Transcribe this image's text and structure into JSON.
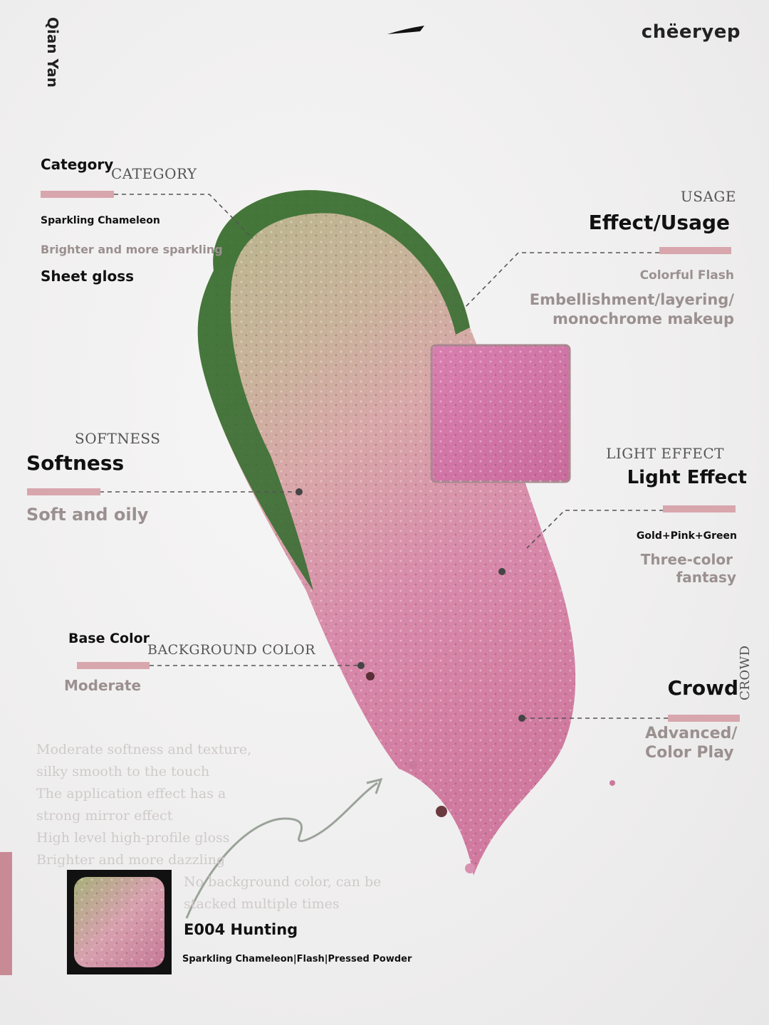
{
  "brand": {
    "vertical_name": "Qian Yan",
    "logo": "chëeryep"
  },
  "colors": {
    "accent_pink": "#d8a6ad",
    "swatch_pink": "#d67aa5",
    "green": "#2f6b2c"
  },
  "category": {
    "label": "Category",
    "label_en": "CATEGORY",
    "line1": "Sparkling Chameleon",
    "line2": "Brighter and more sparkling",
    "line3": "Sheet gloss"
  },
  "usage": {
    "label_en": "USAGE",
    "label": "Effect/Usage",
    "line1": "Colorful Flash",
    "line2a": "Embellishment/layering/",
    "line2b": "monochrome makeup"
  },
  "softness": {
    "label_en": "SOFTNESS",
    "label": "Softness",
    "value": "Soft and oily"
  },
  "light_effect": {
    "label_en": "LIGHT EFFECT",
    "label": "Light Effect",
    "line1": "Gold+Pink+Green",
    "line2a": "Three-color",
    "line2b": "fantasy"
  },
  "base_color": {
    "label": "Base Color",
    "label_en": "BACKGROUND COLOR",
    "value": "Moderate"
  },
  "crowd": {
    "label": "Crowd",
    "label_en": "CROWD",
    "line1": "Advanced/",
    "line2": "Color Play"
  },
  "description": [
    "Moderate softness and texture,",
    "silky smooth to the touch",
    "The application effect has a",
    "strong mirror effect",
    "High level high-profile gloss",
    "Brighter and more dazzling",
    "No background color, can be",
    "stacked multiple times"
  ],
  "product": {
    "name": "E004 Hunting",
    "subtitle": "Sparkling Chameleon|Flash|Pressed Powder"
  }
}
